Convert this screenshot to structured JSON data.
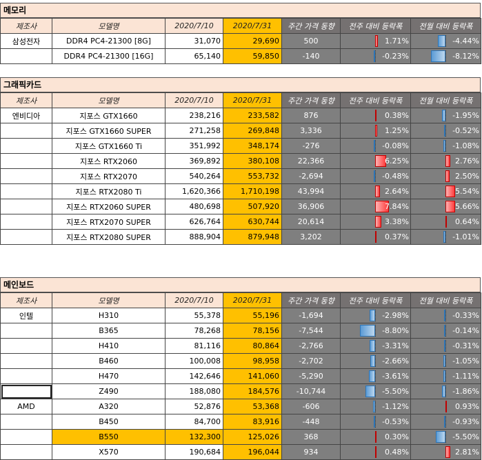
{
  "columns": [
    "제조사",
    "모델명",
    "2020/7/10",
    "2020/7/31",
    "주간 가격 동향",
    "전주 대비 등락폭",
    "전월 대비 등락폭"
  ],
  "sections": [
    {
      "title": "메모리",
      "rows": [
        {
          "maker": "삼성전자",
          "model": "DDR4 PC4-21300 [8G]",
          "p710": "31,070",
          "p731": "29,690",
          "weekly": "500",
          "wow": "1.71%",
          "wow_v": 1.71,
          "mom": "-4.44%",
          "mom_v": -4.44
        },
        {
          "maker": "",
          "model": "DDR4 PC4-21300 [16G]",
          "p710": "65,140",
          "p731": "59,850",
          "weekly": "-140",
          "wow": "-0.23%",
          "wow_v": -0.23,
          "mom": "-8.12%",
          "mom_v": -8.12
        }
      ]
    },
    {
      "title": "그래픽카드",
      "rows": [
        {
          "maker": "엔비디아",
          "model": "지포스 GTX1660",
          "p710": "238,216",
          "p731": "233,582",
          "weekly": "876",
          "wow": "0.38%",
          "wow_v": 0.38,
          "mom": "-1.95%",
          "mom_v": -1.95
        },
        {
          "maker": "",
          "model": "지포스 GTX1660 SUPER",
          "p710": "271,258",
          "p731": "269,848",
          "weekly": "3,336",
          "wow": "1.25%",
          "wow_v": 1.25,
          "mom": "-0.52%",
          "mom_v": -0.52
        },
        {
          "maker": "",
          "model": "지포스 GTX1660 Ti",
          "p710": "351,992",
          "p731": "348,174",
          "weekly": "-276",
          "wow": "-0.08%",
          "wow_v": -0.08,
          "mom": "-1.08%",
          "mom_v": -1.08
        },
        {
          "maker": "",
          "model": "지포스 RTX2060",
          "p710": "369,892",
          "p731": "380,108",
          "weekly": "22,366",
          "wow": "6.25%",
          "wow_v": 6.25,
          "mom": "2.76%",
          "mom_v": 2.76
        },
        {
          "maker": "",
          "model": "지포스 RTX2070",
          "p710": "540,264",
          "p731": "553,732",
          "weekly": "-2,694",
          "wow": "-0.48%",
          "wow_v": -0.48,
          "mom": "2.50%",
          "mom_v": 2.5
        },
        {
          "maker": "",
          "model": "지포스 RTX2080 Ti",
          "p710": "1,620,366",
          "p731": "1,710,198",
          "weekly": "43,994",
          "wow": "2.64%",
          "wow_v": 2.64,
          "mom": "5.54%",
          "mom_v": 5.54
        },
        {
          "maker": "",
          "model": "지포스 RTX2060 SUPER",
          "p710": "480,698",
          "p731": "507,920",
          "weekly": "36,906",
          "wow": "7.84%",
          "wow_v": 7.84,
          "mom": "5.66%",
          "mom_v": 5.66
        },
        {
          "maker": "",
          "model": "지포스 RTX2070 SUPER",
          "p710": "626,764",
          "p731": "630,744",
          "weekly": "20,614",
          "wow": "3.38%",
          "wow_v": 3.38,
          "mom": "0.64%",
          "mom_v": 0.64
        },
        {
          "maker": "",
          "model": "지포스 RTX2080 SUPER",
          "p710": "888,904",
          "p731": "879,948",
          "weekly": "3,202",
          "wow": "0.37%",
          "wow_v": 0.37,
          "mom": "-1.01%",
          "mom_v": -1.01
        }
      ]
    },
    {
      "title": "메인보드",
      "rows": [
        {
          "maker": "인텔",
          "model": "H310",
          "p710": "55,378",
          "p731": "55,196",
          "weekly": "-1,694",
          "wow": "-2.98%",
          "wow_v": -2.98,
          "mom": "-0.33%",
          "mom_v": -0.33
        },
        {
          "maker": "",
          "model": "B365",
          "p710": "78,268",
          "p731": "78,156",
          "weekly": "-7,544",
          "wow": "-8.80%",
          "wow_v": -8.8,
          "mom": "-0.14%",
          "mom_v": -0.14
        },
        {
          "maker": "",
          "model": "H410",
          "p710": "81,116",
          "p731": "80,864",
          "weekly": "-2,766",
          "wow": "-3.31%",
          "wow_v": -3.31,
          "mom": "-0.31%",
          "mom_v": -0.31
        },
        {
          "maker": "",
          "model": "B460",
          "p710": "100,008",
          "p731": "98,958",
          "weekly": "-2,702",
          "wow": "-2.66%",
          "wow_v": -2.66,
          "mom": "-1.05%",
          "mom_v": -1.05
        },
        {
          "maker": "",
          "model": "H470",
          "p710": "142,646",
          "p731": "141,060",
          "weekly": "-5,290",
          "wow": "-3.61%",
          "wow_v": -3.61,
          "mom": "-1.11%",
          "mom_v": -1.11
        },
        {
          "maker": "",
          "model": "Z490",
          "p710": "188,080",
          "p731": "184,576",
          "weekly": "-10,744",
          "wow": "-5.50%",
          "wow_v": -5.5,
          "mom": "-1.86%",
          "mom_v": -1.86,
          "selected": true
        },
        {
          "maker": "AMD",
          "model": "A320",
          "p710": "52,876",
          "p731": "53,368",
          "weekly": "-606",
          "wow": "-1.12%",
          "wow_v": -1.12,
          "mom": "0.93%",
          "mom_v": 0.93
        },
        {
          "maker": "",
          "model": "B450",
          "p710": "84,700",
          "p731": "83,916",
          "weekly": "-448",
          "wow": "-0.53%",
          "wow_v": -0.53,
          "mom": "-0.93%",
          "mom_v": -0.93
        },
        {
          "maker": "",
          "model": "B550",
          "p710": "132,300",
          "p731": "125,026",
          "weekly": "368",
          "wow": "0.30%",
          "wow_v": 0.3,
          "mom": "-5.50%",
          "mom_v": -5.5,
          "highlight": true
        },
        {
          "maker": "",
          "model": "X570",
          "p710": "190,684",
          "p731": "196,044",
          "weekly": "934",
          "wow": "0.48%",
          "wow_v": 0.48,
          "mom": "2.81%",
          "mom_v": 2.81
        }
      ]
    }
  ],
  "colors": {
    "header_bg": "#fbe4d5",
    "current_price_bg": "#ffc000",
    "trend_bg": "#7f7f7f",
    "negative_bar": "#5b9bd5",
    "positive_bar": "#ff3b3b"
  }
}
